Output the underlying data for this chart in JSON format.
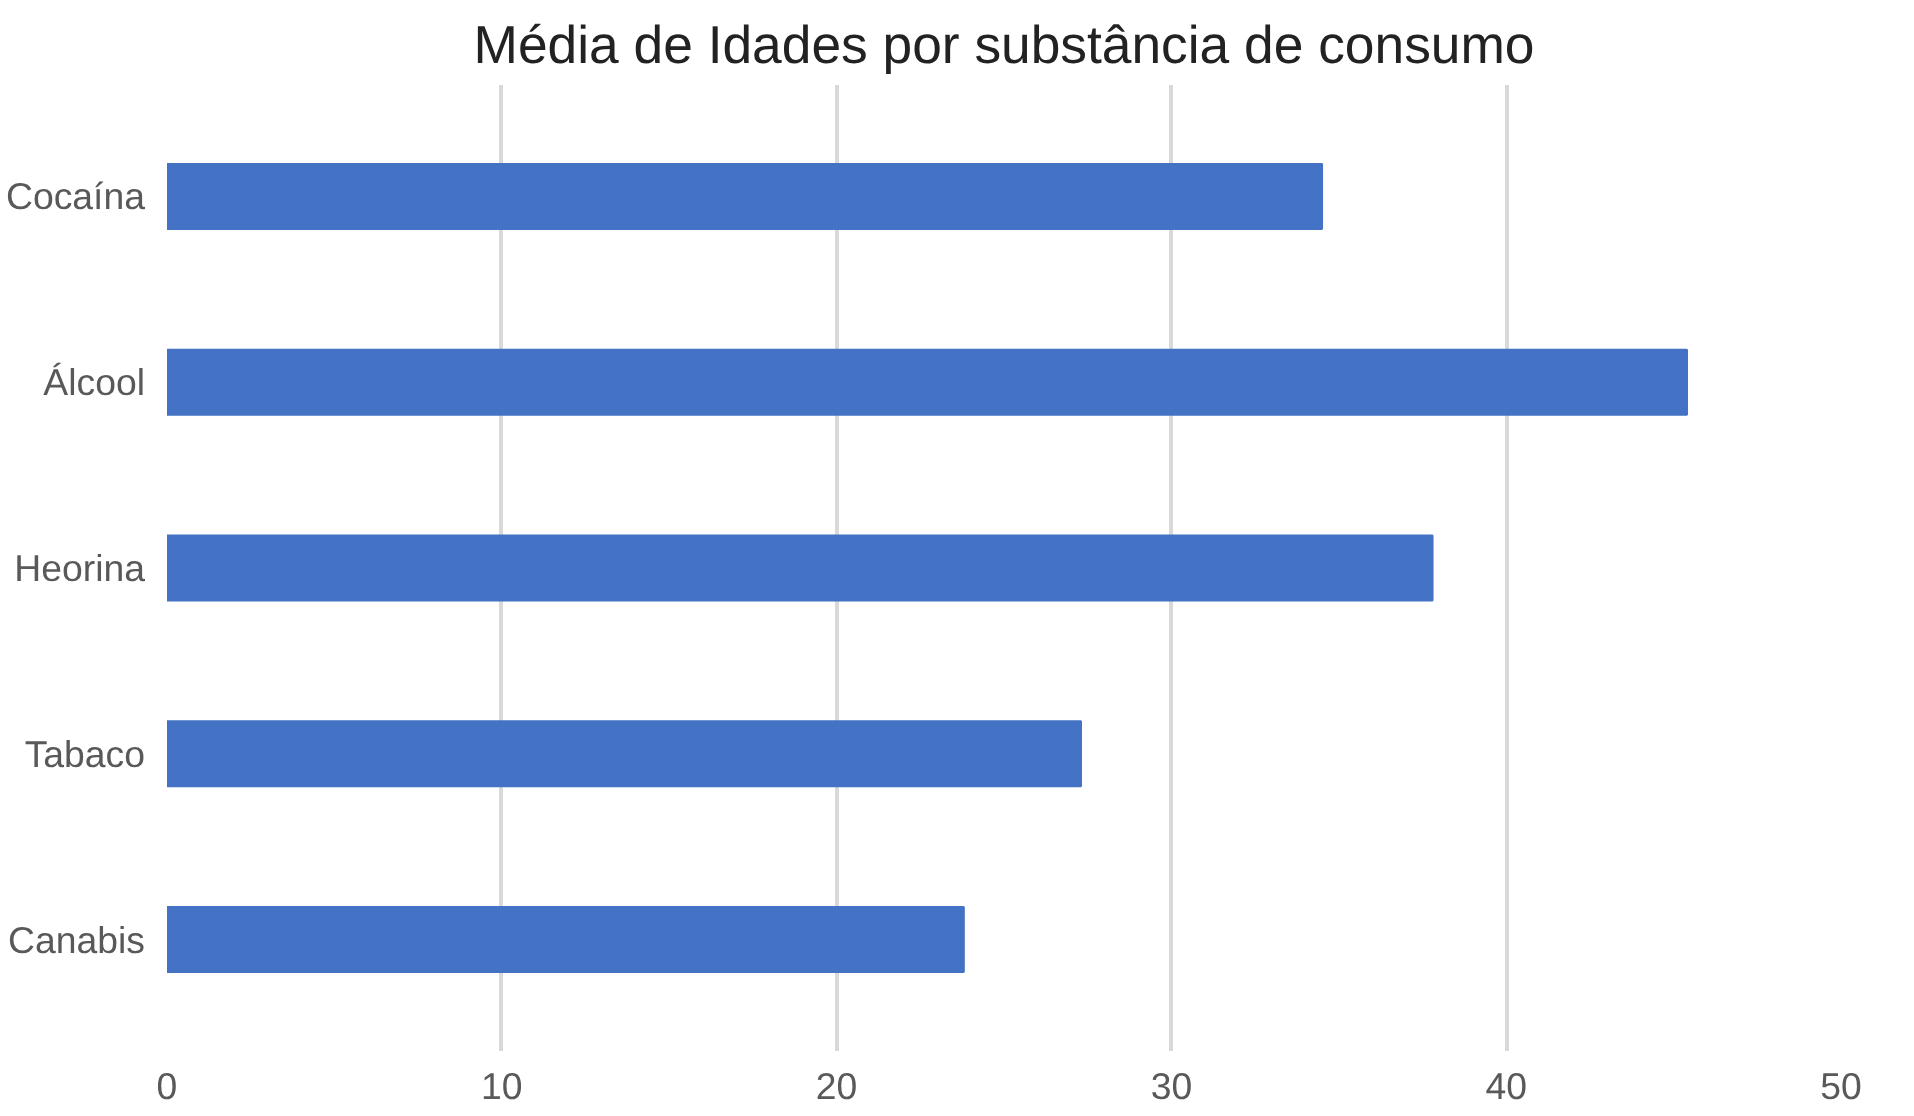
{
  "chart_data": {
    "type": "bar",
    "orientation": "horizontal",
    "title": "Média de Idades por substância de consumo",
    "categories": [
      "Cocaína",
      "Álcool",
      "Heorina",
      "Tabaco",
      "Canabis"
    ],
    "values": [
      34.5,
      45.4,
      37.8,
      27.3,
      23.8
    ],
    "color": "#4472c4",
    "xlim": [
      0,
      50
    ],
    "xticks": [
      0,
      10,
      20,
      30,
      40,
      50
    ],
    "grid": "x"
  }
}
